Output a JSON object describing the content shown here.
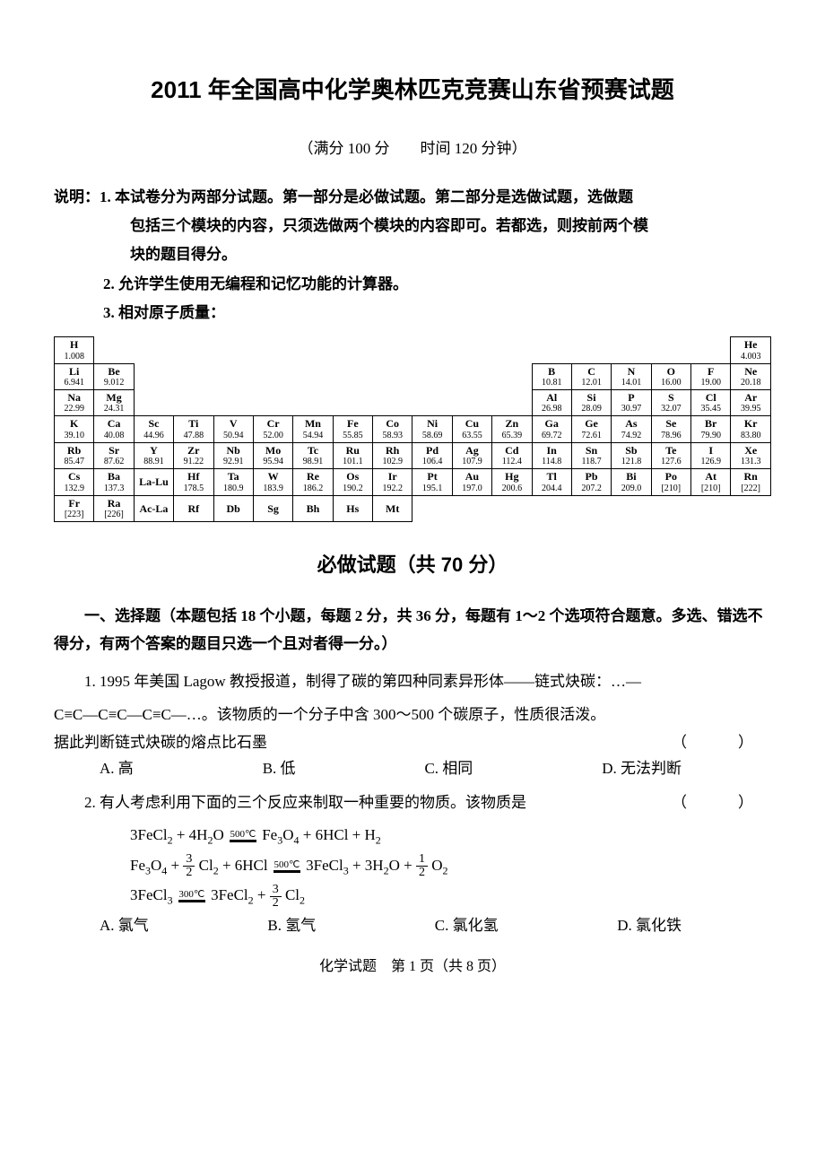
{
  "title": "2011 年全国高中化学奥林匹克竞赛山东省预赛试题",
  "subtitle": "（满分 100 分　　时间 120 分钟）",
  "instructions": {
    "line1": "说明：1. 本试卷分为两部分试题。第一部分是必做试题。第二部分是选做试题，选做题",
    "line1b": "包括三个模块的内容，只须选做两个模块的内容即可。若都选，则按前两个模",
    "line1c": "块的题目得分。",
    "line2": "2. 允许学生使用无编程和记忆功能的计算器。",
    "line3": "3. 相对原子质量："
  },
  "periodic": {
    "rows": [
      [
        {
          "e": "H",
          "m": "1.008"
        },
        null,
        null,
        null,
        null,
        null,
        null,
        null,
        null,
        null,
        null,
        null,
        null,
        null,
        null,
        null,
        null,
        {
          "e": "He",
          "m": "4.003"
        }
      ],
      [
        {
          "e": "Li",
          "m": "6.941"
        },
        {
          "e": "Be",
          "m": "9.012"
        },
        null,
        null,
        null,
        null,
        null,
        null,
        null,
        null,
        null,
        null,
        {
          "e": "B",
          "m": "10.81"
        },
        {
          "e": "C",
          "m": "12.01"
        },
        {
          "e": "N",
          "m": "14.01"
        },
        {
          "e": "O",
          "m": "16.00"
        },
        {
          "e": "F",
          "m": "19.00"
        },
        {
          "e": "Ne",
          "m": "20.18"
        }
      ],
      [
        {
          "e": "Na",
          "m": "22.99"
        },
        {
          "e": "Mg",
          "m": "24.31"
        },
        null,
        null,
        null,
        null,
        null,
        null,
        null,
        null,
        null,
        null,
        {
          "e": "Al",
          "m": "26.98"
        },
        {
          "e": "Si",
          "m": "28.09"
        },
        {
          "e": "P",
          "m": "30.97"
        },
        {
          "e": "S",
          "m": "32.07"
        },
        {
          "e": "Cl",
          "m": "35.45"
        },
        {
          "e": "Ar",
          "m": "39.95"
        }
      ],
      [
        {
          "e": "K",
          "m": "39.10"
        },
        {
          "e": "Ca",
          "m": "40.08"
        },
        {
          "e": "Sc",
          "m": "44.96"
        },
        {
          "e": "Ti",
          "m": "47.88"
        },
        {
          "e": "V",
          "m": "50.94"
        },
        {
          "e": "Cr",
          "m": "52.00"
        },
        {
          "e": "Mn",
          "m": "54.94"
        },
        {
          "e": "Fe",
          "m": "55.85"
        },
        {
          "e": "Co",
          "m": "58.93"
        },
        {
          "e": "Ni",
          "m": "58.69"
        },
        {
          "e": "Cu",
          "m": "63.55"
        },
        {
          "e": "Zn",
          "m": "65.39"
        },
        {
          "e": "Ga",
          "m": "69.72"
        },
        {
          "e": "Ge",
          "m": "72.61"
        },
        {
          "e": "As",
          "m": "74.92"
        },
        {
          "e": "Se",
          "m": "78.96"
        },
        {
          "e": "Br",
          "m": "79.90"
        },
        {
          "e": "Kr",
          "m": "83.80"
        }
      ],
      [
        {
          "e": "Rb",
          "m": "85.47"
        },
        {
          "e": "Sr",
          "m": "87.62"
        },
        {
          "e": "Y",
          "m": "88.91"
        },
        {
          "e": "Zr",
          "m": "91.22"
        },
        {
          "e": "Nb",
          "m": "92.91"
        },
        {
          "e": "Mo",
          "m": "95.94"
        },
        {
          "e": "Tc",
          "m": "98.91"
        },
        {
          "e": "Ru",
          "m": "101.1"
        },
        {
          "e": "Rh",
          "m": "102.9"
        },
        {
          "e": "Pd",
          "m": "106.4"
        },
        {
          "e": "Ag",
          "m": "107.9"
        },
        {
          "e": "Cd",
          "m": "112.4"
        },
        {
          "e": "In",
          "m": "114.8"
        },
        {
          "e": "Sn",
          "m": "118.7"
        },
        {
          "e": "Sb",
          "m": "121.8"
        },
        {
          "e": "Te",
          "m": "127.6"
        },
        {
          "e": "I",
          "m": "126.9"
        },
        {
          "e": "Xe",
          "m": "131.3"
        }
      ],
      [
        {
          "e": "Cs",
          "m": "132.9"
        },
        {
          "e": "Ba",
          "m": "137.3"
        },
        {
          "e": "La-Lu",
          "m": ""
        },
        {
          "e": "Hf",
          "m": "178.5"
        },
        {
          "e": "Ta",
          "m": "180.9"
        },
        {
          "e": "W",
          "m": "183.9"
        },
        {
          "e": "Re",
          "m": "186.2"
        },
        {
          "e": "Os",
          "m": "190.2"
        },
        {
          "e": "Ir",
          "m": "192.2"
        },
        {
          "e": "Pt",
          "m": "195.1"
        },
        {
          "e": "Au",
          "m": "197.0"
        },
        {
          "e": "Hg",
          "m": "200.6"
        },
        {
          "e": "Tl",
          "m": "204.4"
        },
        {
          "e": "Pb",
          "m": "207.2"
        },
        {
          "e": "Bi",
          "m": "209.0"
        },
        {
          "e": "Po",
          "m": "[210]"
        },
        {
          "e": "At",
          "m": "[210]"
        },
        {
          "e": "Rn",
          "m": "[222]"
        }
      ],
      [
        {
          "e": "Fr",
          "m": "[223]"
        },
        {
          "e": "Ra",
          "m": "[226]"
        },
        {
          "e": "Ac-La",
          "m": ""
        },
        {
          "e": "Rf",
          "m": ""
        },
        {
          "e": "Db",
          "m": ""
        },
        {
          "e": "Sg",
          "m": ""
        },
        {
          "e": "Bh",
          "m": ""
        },
        {
          "e": "Hs",
          "m": ""
        },
        {
          "e": "Mt",
          "m": ""
        },
        null,
        null,
        null,
        null,
        null,
        null,
        null,
        null,
        null
      ]
    ]
  },
  "section_title": "必做试题（共 70 分）",
  "mc_intro": "一、选择题（本题包括 18 个小题，每题 2 分，共 36 分，每题有 1～2 个选项符合题意。多选、错选不得分，有两个答案的题目只选一个且对者得一分。）",
  "q1": {
    "text1": "1. 1995 年美国 Lagow 教授报道，制得了碳的第四种同素异形体——链式炔碳：…—",
    "text2": "C≡C—C≡C—C≡C—…。该物质的一个分子中含 300～500 个碳原子，性质很活泼。",
    "text3": "据此判断链式炔碳的熔点比石墨",
    "optA": "A. 高",
    "optB": "B. 低",
    "optC": "C. 相同",
    "optD": "D. 无法判断"
  },
  "q2": {
    "text": "2. 有人考虑利用下面的三个反应来制取一种重要的物质。该物质是",
    "optA": "A. 氯气",
    "optB": "B. 氢气",
    "optC": "C. 氯化氢",
    "optD": "D. 氯化铁"
  },
  "footer": "化学试题　第 1 页（共 8 页）",
  "paren": "（　）"
}
